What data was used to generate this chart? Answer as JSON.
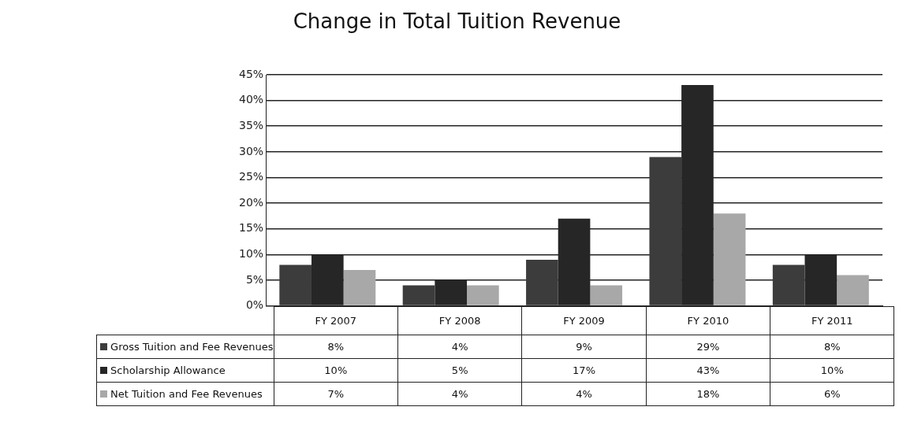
{
  "chart_data": {
    "type": "bar",
    "title": "Change in Total Tuition Revenue",
    "categories": [
      "FY 2007",
      "FY 2008",
      "FY 2009",
      "FY 2010",
      "FY 2011"
    ],
    "series": [
      {
        "name": "Gross Tuition and Fee Revenues",
        "color": "#3c3c3c",
        "values": [
          8,
          4,
          9,
          29,
          8
        ],
        "value_labels": [
          "8%",
          "4%",
          "9%",
          "29%",
          "8%"
        ]
      },
      {
        "name": "Scholarship Allowance",
        "color": "#262626",
        "values": [
          10,
          5,
          17,
          43,
          10
        ],
        "value_labels": [
          "10%",
          "5%",
          "17%",
          "43%",
          "10%"
        ]
      },
      {
        "name": "Net Tuition and Fee Revenues",
        "color": "#a8a8a8",
        "values": [
          7,
          4,
          4,
          18,
          6
        ],
        "value_labels": [
          "7%",
          "4%",
          "4%",
          "18%",
          "6%"
        ]
      }
    ],
    "ylim": [
      0,
      45
    ],
    "yticks": [
      {
        "value": 0,
        "label": "0%"
      },
      {
        "value": 5,
        "label": "5%"
      },
      {
        "value": 10,
        "label": "10%"
      },
      {
        "value": 15,
        "label": "15%"
      },
      {
        "value": 20,
        "label": "20%"
      },
      {
        "value": 25,
        "label": "25%"
      },
      {
        "value": 30,
        "label": "30%"
      },
      {
        "value": 35,
        "label": "35%"
      },
      {
        "value": 40,
        "label": "40%"
      },
      {
        "value": 45,
        "label": "45%"
      }
    ],
    "grid": "y",
    "legend": "bottom",
    "data_labels": true
  }
}
